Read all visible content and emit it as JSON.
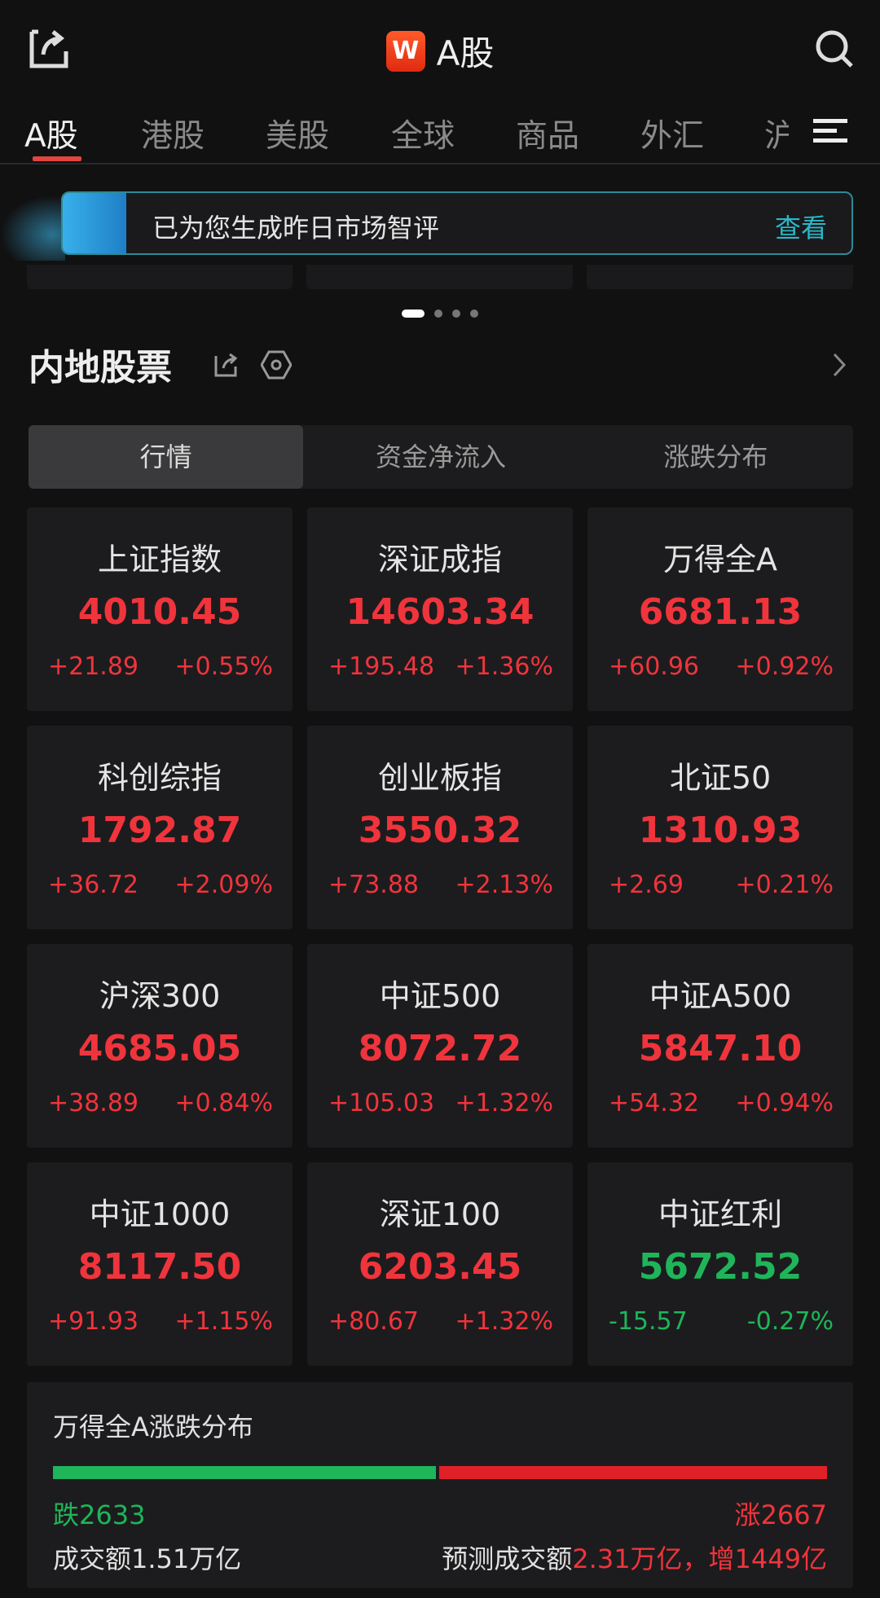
{
  "header": {
    "logo": "W",
    "title": "A股",
    "share_icon": "share-icon",
    "search_icon": "search-icon"
  },
  "tabs": [
    "A股",
    "港股",
    "美股",
    "全球",
    "商品",
    "外汇",
    "沪"
  ],
  "banner": {
    "text": "已为您生成昨日市场智评",
    "action": "查看"
  },
  "section": {
    "title": "内地股票"
  },
  "segments": [
    "行情",
    "资金净流入",
    "涨跌分布"
  ],
  "colors": {
    "up": "#f0343c",
    "down": "#1fb55a",
    "accent": "#e0453f",
    "banner_action": "#2bb8c8"
  },
  "indices": [
    {
      "name": "上证指数",
      "price": "4010.45",
      "change": "+21.89",
      "pct": "+0.55%",
      "dir": "up"
    },
    {
      "name": "深证成指",
      "price": "14603.34",
      "change": "+195.48",
      "pct": "+1.36%",
      "dir": "up"
    },
    {
      "name": "万得全A",
      "price": "6681.13",
      "change": "+60.96",
      "pct": "+0.92%",
      "dir": "up"
    },
    {
      "name": "科创综指",
      "price": "1792.87",
      "change": "+36.72",
      "pct": "+2.09%",
      "dir": "up"
    },
    {
      "name": "创业板指",
      "price": "3550.32",
      "change": "+73.88",
      "pct": "+2.13%",
      "dir": "up"
    },
    {
      "name": "北证50",
      "price": "1310.93",
      "change": "+2.69",
      "pct": "+0.21%",
      "dir": "up"
    },
    {
      "name": "沪深300",
      "price": "4685.05",
      "change": "+38.89",
      "pct": "+0.84%",
      "dir": "up"
    },
    {
      "name": "中证500",
      "price": "8072.72",
      "change": "+105.03",
      "pct": "+1.32%",
      "dir": "up"
    },
    {
      "name": "中证A500",
      "price": "5847.10",
      "change": "+54.32",
      "pct": "+0.94%",
      "dir": "up"
    },
    {
      "name": "中证1000",
      "price": "8117.50",
      "change": "+91.93",
      "pct": "+1.15%",
      "dir": "up"
    },
    {
      "name": "深证100",
      "price": "6203.45",
      "change": "+80.67",
      "pct": "+1.32%",
      "dir": "up"
    },
    {
      "name": "中证红利",
      "price": "5672.52",
      "change": "-15.57",
      "pct": "-0.27%",
      "dir": "down"
    }
  ],
  "distribution": {
    "title": "万得全A涨跌分布",
    "fall_label": "跌",
    "fall": 2633,
    "rise_label": "涨",
    "rise": 2667,
    "volume_label": "成交额1.51万亿",
    "forecast_label": "预测成交额",
    "forecast_value": "2.31万亿，增1449亿"
  }
}
